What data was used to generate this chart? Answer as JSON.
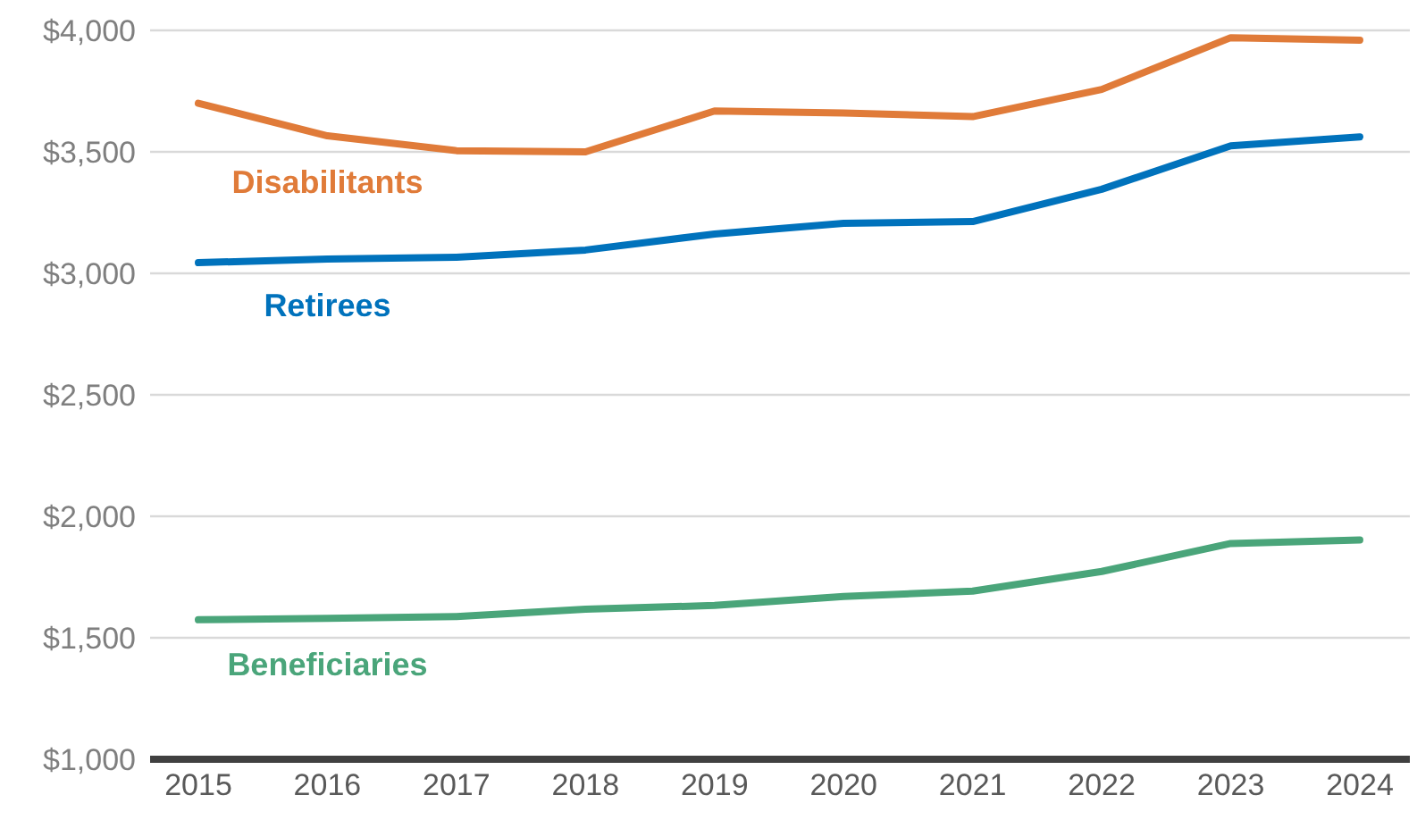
{
  "chart_data": {
    "type": "line",
    "categories": [
      "2015",
      "2016",
      "2017",
      "2018",
      "2019",
      "2020",
      "2021",
      "2022",
      "2023",
      "2024"
    ],
    "series": [
      {
        "name": "Disabilitants",
        "color": "#e07b39",
        "values": [
          3700,
          3566,
          3505,
          3500,
          3668,
          3660,
          3645,
          3757,
          3970,
          3960
        ]
      },
      {
        "name": "Retirees",
        "color": "#0072bc",
        "values": [
          3044,
          3059,
          3066,
          3096,
          3162,
          3206,
          3213,
          3346,
          3525,
          3562
        ]
      },
      {
        "name": "Beneficiaries",
        "color": "#4aa57a",
        "values": [
          1574,
          1580,
          1587,
          1618,
          1633,
          1670,
          1692,
          1773,
          1888,
          1903
        ]
      }
    ],
    "ylim": [
      1000,
      4000
    ],
    "yticks": [
      {
        "value": 1000,
        "label": "$1,000"
      },
      {
        "value": 1500,
        "label": "$1,500"
      },
      {
        "value": 2000,
        "label": "$2,000"
      },
      {
        "value": 2500,
        "label": "$2,500"
      },
      {
        "value": 3000,
        "label": "$3,000"
      },
      {
        "value": 3500,
        "label": "$3,500"
      },
      {
        "value": 4000,
        "label": "$4,000"
      }
    ],
    "grid": "y",
    "legend": false,
    "marker": "none",
    "line_style": "solid"
  }
}
